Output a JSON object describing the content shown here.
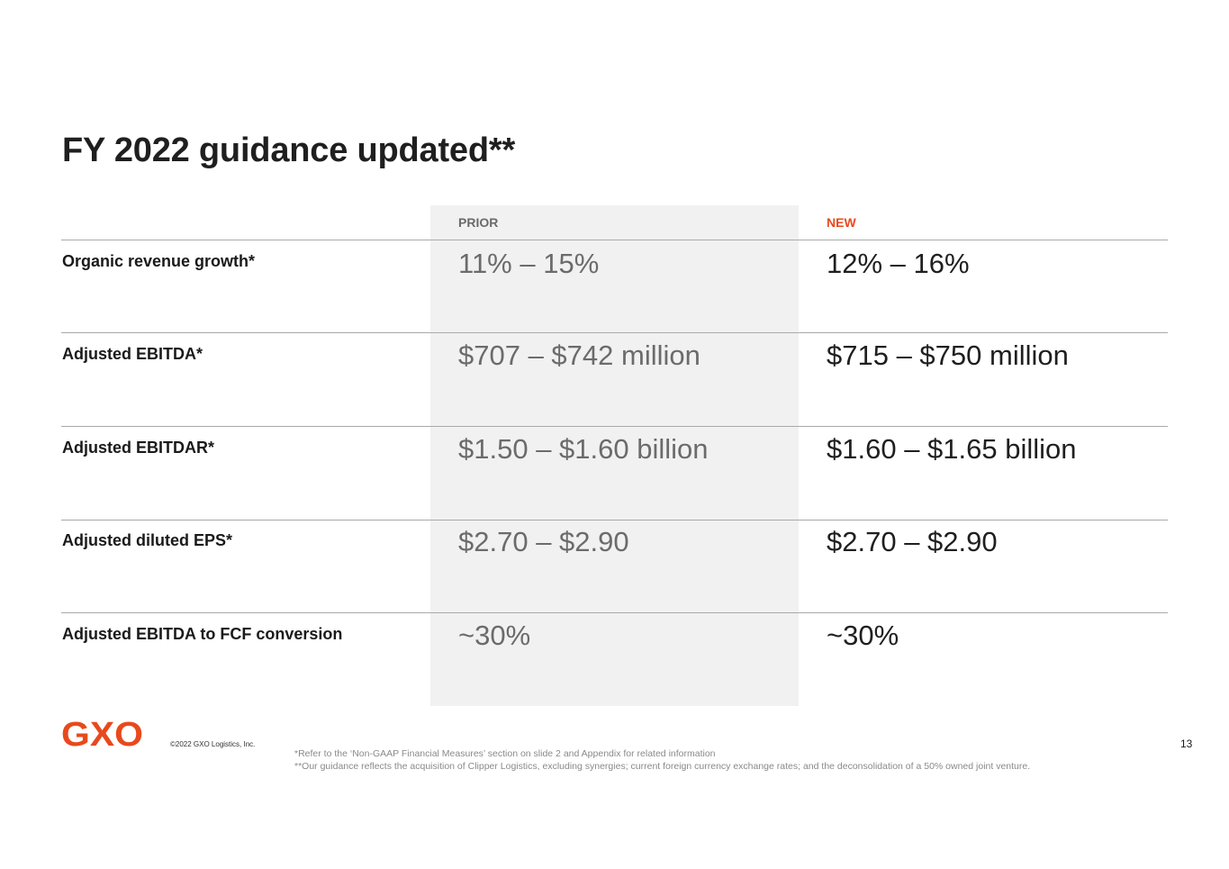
{
  "slide": {
    "title": "FY 2022 guidance updated**",
    "columns": {
      "prior": "PRIOR",
      "new": "NEW"
    },
    "colors": {
      "accent": "#e8491d",
      "prior_bg": "#f1f1f1",
      "prior_text": "#6b6b6b"
    },
    "rows": [
      {
        "label": "Organic revenue growth*",
        "prior": "11% – 15%",
        "new": "12% – 16%"
      },
      {
        "label": "Adjusted EBITDA*",
        "prior": "$707 – $742 million",
        "new": "$715 – $750 million"
      },
      {
        "label": "Adjusted EBITDAR*",
        "prior": "$1.50 – $1.60 billion",
        "new": "$1.60 – $1.65 billion"
      },
      {
        "label": "Adjusted diluted EPS*",
        "prior": "$2.70 – $2.90",
        "new": "$2.70 – $2.90"
      },
      {
        "label": "Adjusted EBITDA to FCF conversion",
        "prior": "~30%",
        "new": "~30%"
      }
    ]
  },
  "footer": {
    "logo_text": "GXO",
    "copyright": "©2022 GXO Logistics, Inc.",
    "footnote_1": "*Refer to the ‘Non-GAAP Financial Measures’ section on slide 2 and Appendix for related information",
    "footnote_2": "**Our guidance reflects the acquisition of Clipper Logistics, excluding synergies; current foreign currency exchange rates; and the deconsolidation of a 50% owned joint venture.",
    "page_number": "13"
  }
}
